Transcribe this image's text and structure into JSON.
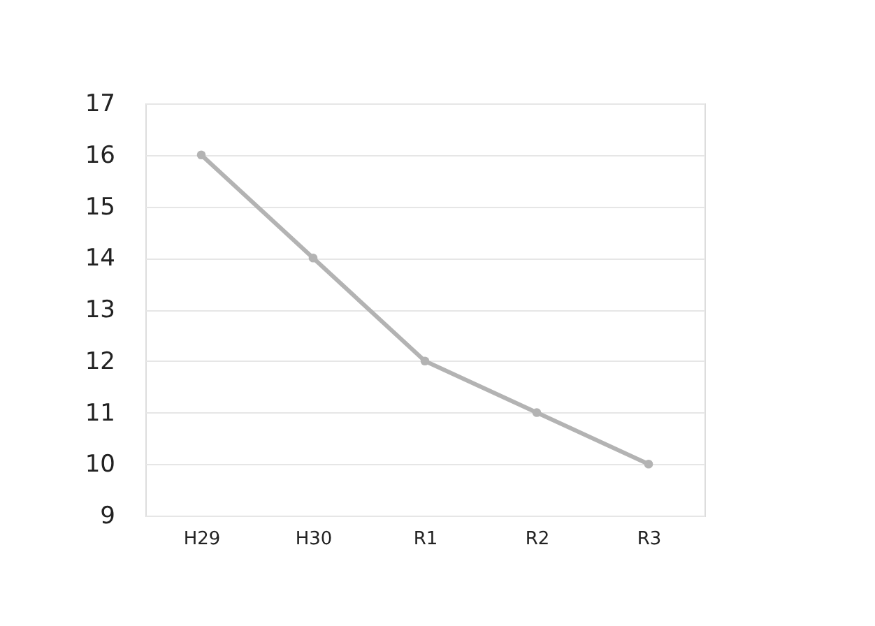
{
  "chart_data": {
    "type": "line",
    "categories": [
      "H29",
      "H30",
      "R1",
      "R2",
      "R3"
    ],
    "series": [
      {
        "color": "#b3b3b3",
        "values": [
          16,
          14,
          12,
          11,
          10
        ]
      }
    ],
    "ylim": [
      9,
      17
    ],
    "yticks": [
      9,
      10,
      11,
      12,
      13,
      14,
      15,
      16,
      17
    ],
    "grid": "y",
    "marker": "circle",
    "line_style": "solid"
  }
}
